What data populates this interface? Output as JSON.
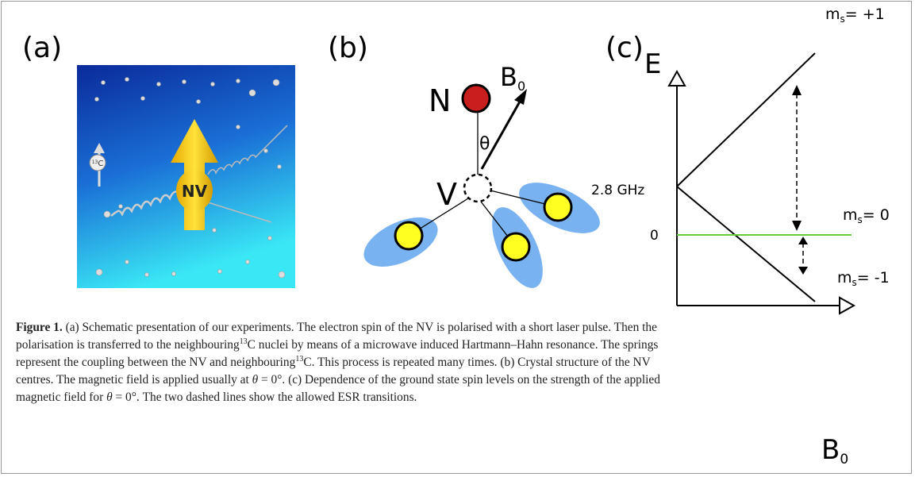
{
  "panel_a": {
    "label": "(a)",
    "nv_label": "NV",
    "carbon_mass": "13",
    "carbon_symbol": "C"
  },
  "panel_b": {
    "label": "(b)",
    "nitrogen": "N",
    "vacancy": "V",
    "angle": "θ",
    "field": "B",
    "field_subscript": "0"
  },
  "panel_c": {
    "label": "(c)",
    "energy_axis": "E",
    "field_axis": "B",
    "field_axis_subscript": "0",
    "level_high": "2.8 GHz",
    "level_zero": "0",
    "states": [
      {
        "symbol": "m",
        "subscript": "s",
        "value": "= +1"
      },
      {
        "symbol": "m",
        "subscript": "s",
        "value": "= 0"
      },
      {
        "symbol": "m",
        "subscript": "s",
        "value": "= -1"
      }
    ]
  },
  "caption": [
    "Figure 1.",
    " (a) Schematic presentation of our experiments. The electron spin of the NV is polarised with a short laser pulse. Then the",
    "polarisation is transferred to the neighbouring",
    "13",
    "C nuclei by means of a microwave induced Hartmann–Hahn resonance. The springs",
    "represent the coupling between the NV and neighbouring",
    "13",
    "C. This process is repeated many times. (b) Crystal structure of the NV",
    "centres. The magnetic field is applied usually at ",
    "θ",
    " = 0°. (c) Dependence of the ground state spin levels on the strength of the applied",
    "magnetic field for ",
    "θ",
    " = 0°. The two dashed lines show the allowed ESR transitions."
  ]
}
